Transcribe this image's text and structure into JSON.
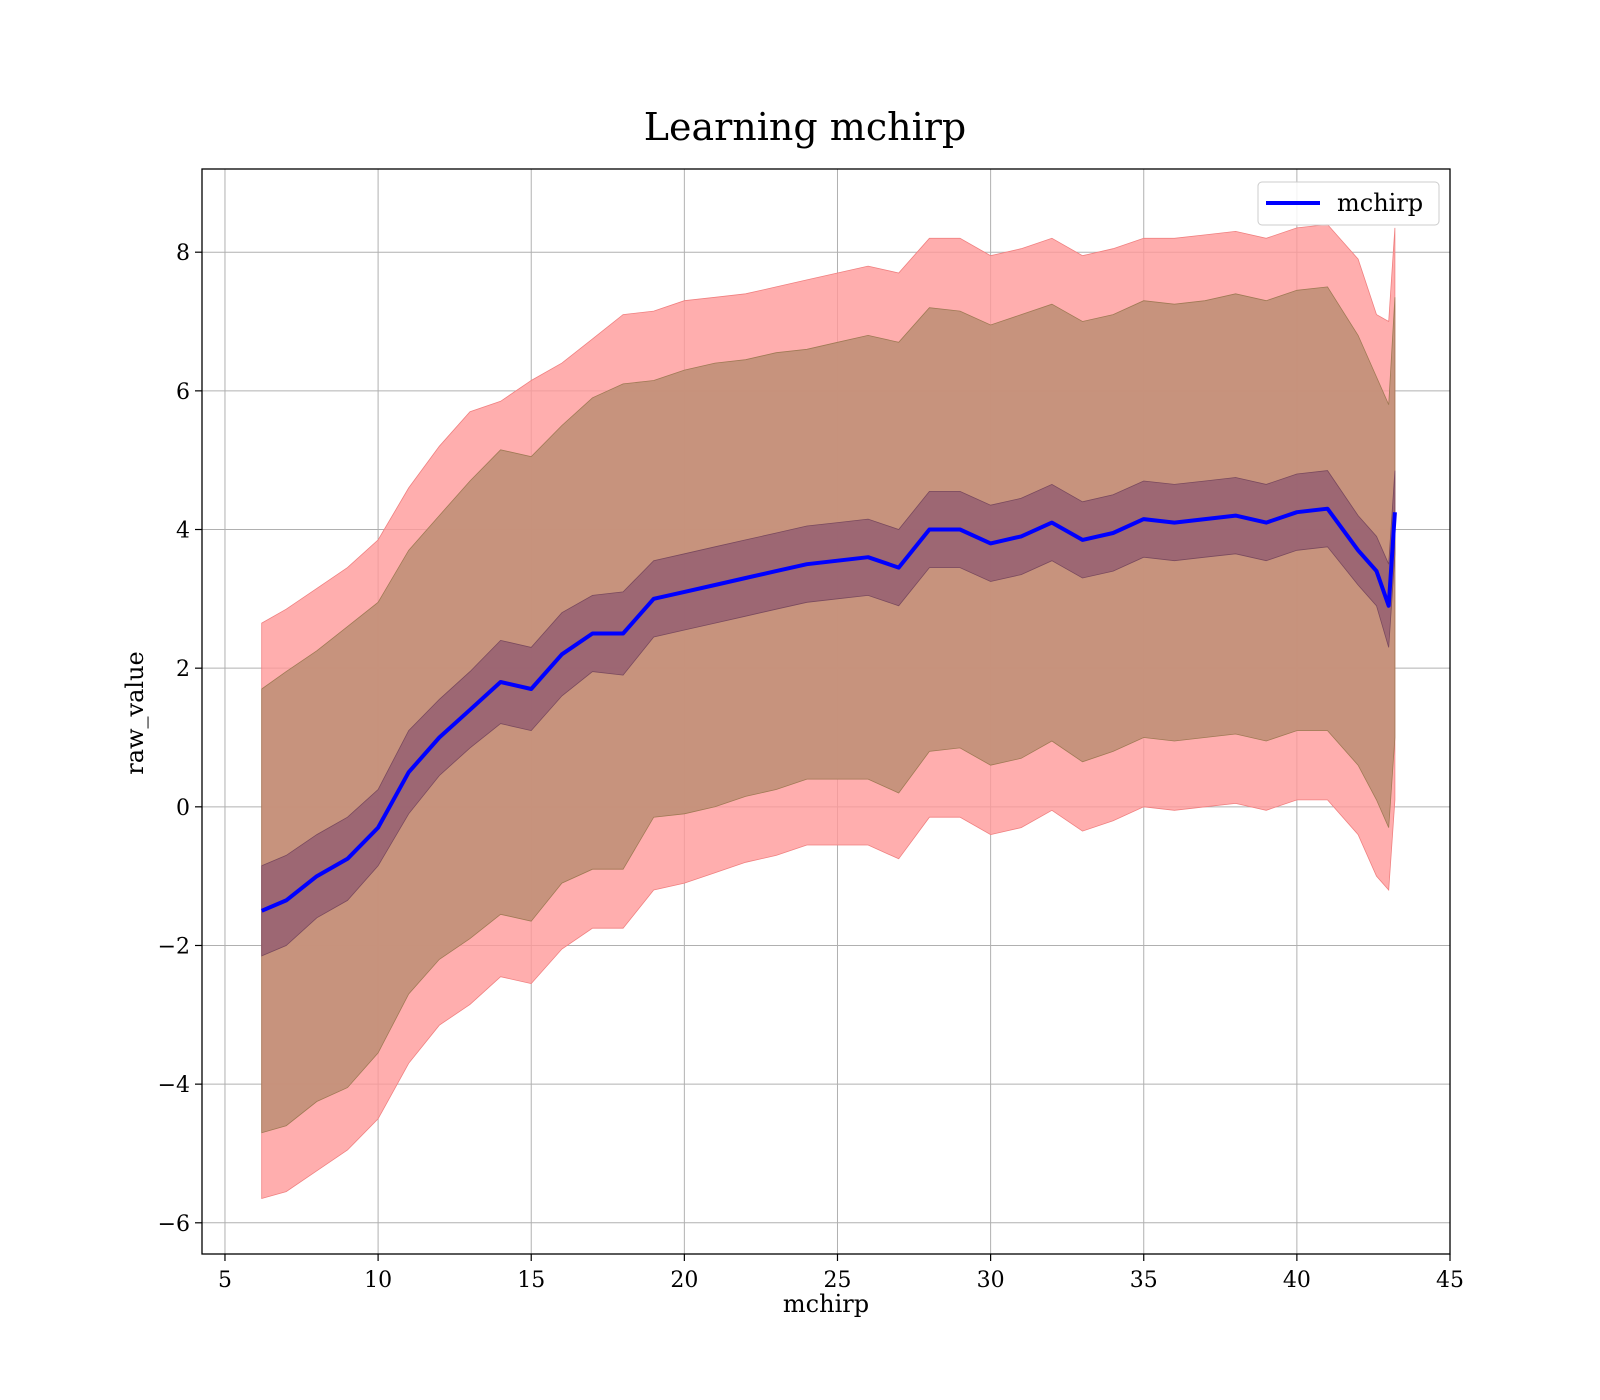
{
  "chart_data": {
    "type": "line",
    "title": "Learning mchirp",
    "xlabel": "mchirp",
    "ylabel": "raw_value",
    "xlim": [
      4.25,
      45
    ],
    "ylim": [
      -6.45,
      9.2
    ],
    "xticks": [
      5,
      10,
      15,
      20,
      25,
      30,
      35,
      40,
      45
    ],
    "xtick_labels": [
      "5",
      "10",
      "15",
      "20",
      "25",
      "30",
      "35",
      "40",
      "45"
    ],
    "yticks": [
      -6,
      -4,
      -2,
      0,
      2,
      4,
      6,
      8
    ],
    "ytick_labels": [
      "−6",
      "−4",
      "−2",
      "0",
      "2",
      "4",
      "6",
      "8"
    ],
    "grid": true,
    "legend": {
      "placement": "top-right",
      "entries": [
        "mchirp"
      ]
    },
    "colors": {
      "line": "#0000ff",
      "outer_band": "#ff9a9a",
      "inner_band": "#c4917a",
      "core_band": "#9b6473",
      "grid": "#b0b0b0"
    },
    "x": [
      6.2,
      7,
      8,
      9,
      10,
      11,
      12,
      13,
      14,
      15,
      16,
      17,
      18,
      19,
      20,
      21,
      22,
      23,
      24,
      25,
      26,
      27,
      28,
      29,
      30,
      31,
      32,
      33,
      34,
      35,
      36,
      37,
      38,
      39,
      40,
      41,
      42,
      42.6,
      43,
      43.2
    ],
    "series": [
      {
        "name": "mchirp",
        "values": [
          -1.5,
          -1.35,
          -1.0,
          -0.75,
          -0.3,
          0.5,
          1.0,
          1.4,
          1.8,
          1.7,
          2.2,
          2.5,
          2.5,
          3.0,
          3.1,
          3.2,
          3.3,
          3.4,
          3.5,
          3.55,
          3.6,
          3.45,
          4.0,
          4.0,
          3.8,
          3.9,
          4.1,
          3.85,
          3.95,
          4.15,
          4.1,
          4.15,
          4.2,
          4.1,
          4.25,
          4.3,
          3.7,
          3.4,
          2.9,
          4.25
        ]
      }
    ],
    "bands": {
      "outer_upper": [
        2.65,
        2.85,
        3.15,
        3.45,
        3.85,
        4.6,
        5.2,
        5.7,
        5.85,
        6.15,
        6.4,
        6.75,
        7.1,
        7.15,
        7.3,
        7.35,
        7.4,
        7.5,
        7.6,
        7.7,
        7.8,
        7.7,
        8.2,
        8.2,
        7.95,
        8.05,
        8.2,
        7.95,
        8.05,
        8.2,
        8.2,
        8.25,
        8.3,
        8.2,
        8.35,
        8.4,
        7.9,
        7.1,
        7.0,
        8.35
      ],
      "inner_upper": [
        1.7,
        1.95,
        2.25,
        2.6,
        2.95,
        3.7,
        4.2,
        4.7,
        5.15,
        5.05,
        5.5,
        5.9,
        6.1,
        6.15,
        6.3,
        6.4,
        6.45,
        6.55,
        6.6,
        6.7,
        6.8,
        6.7,
        7.2,
        7.15,
        6.95,
        7.1,
        7.25,
        7.0,
        7.1,
        7.3,
        7.25,
        7.3,
        7.4,
        7.3,
        7.45,
        7.5,
        6.8,
        6.2,
        5.8,
        7.35
      ],
      "core_upper": [
        -0.85,
        -0.7,
        -0.4,
        -0.15,
        0.25,
        1.1,
        1.55,
        1.95,
        2.4,
        2.3,
        2.8,
        3.05,
        3.1,
        3.55,
        3.65,
        3.75,
        3.85,
        3.95,
        4.05,
        4.1,
        4.15,
        4.0,
        4.55,
        4.55,
        4.35,
        4.45,
        4.65,
        4.4,
        4.5,
        4.7,
        4.65,
        4.7,
        4.75,
        4.65,
        4.8,
        4.85,
        4.2,
        3.9,
        3.5,
        4.85
      ],
      "core_lower": [
        -2.15,
        -2.0,
        -1.6,
        -1.35,
        -0.85,
        -0.1,
        0.45,
        0.85,
        1.2,
        1.1,
        1.6,
        1.95,
        1.9,
        2.45,
        2.55,
        2.65,
        2.75,
        2.85,
        2.95,
        3.0,
        3.05,
        2.9,
        3.45,
        3.45,
        3.25,
        3.35,
        3.55,
        3.3,
        3.4,
        3.6,
        3.55,
        3.6,
        3.65,
        3.55,
        3.7,
        3.75,
        3.2,
        2.9,
        2.3,
        3.65
      ],
      "inner_lower": [
        -4.7,
        -4.6,
        -4.25,
        -4.05,
        -3.55,
        -2.7,
        -2.2,
        -1.9,
        -1.55,
        -1.65,
        -1.1,
        -0.9,
        -0.9,
        -0.15,
        -0.1,
        0.0,
        0.15,
        0.25,
        0.4,
        0.4,
        0.4,
        0.2,
        0.8,
        0.85,
        0.6,
        0.7,
        0.95,
        0.65,
        0.8,
        1.0,
        0.95,
        1.0,
        1.05,
        0.95,
        1.1,
        1.1,
        0.6,
        0.1,
        -0.3,
        1.0
      ],
      "outer_lower": [
        -5.65,
        -5.55,
        -5.25,
        -4.95,
        -4.5,
        -3.7,
        -3.15,
        -2.85,
        -2.45,
        -2.55,
        -2.05,
        -1.75,
        -1.75,
        -1.2,
        -1.1,
        -0.95,
        -0.8,
        -0.7,
        -0.55,
        -0.55,
        -0.55,
        -0.75,
        -0.15,
        -0.15,
        -0.4,
        -0.3,
        -0.05,
        -0.35,
        -0.2,
        0.0,
        -0.05,
        0.0,
        0.05,
        -0.05,
        0.1,
        0.1,
        -0.4,
        -1.0,
        -1.2,
        0.1
      ]
    }
  }
}
